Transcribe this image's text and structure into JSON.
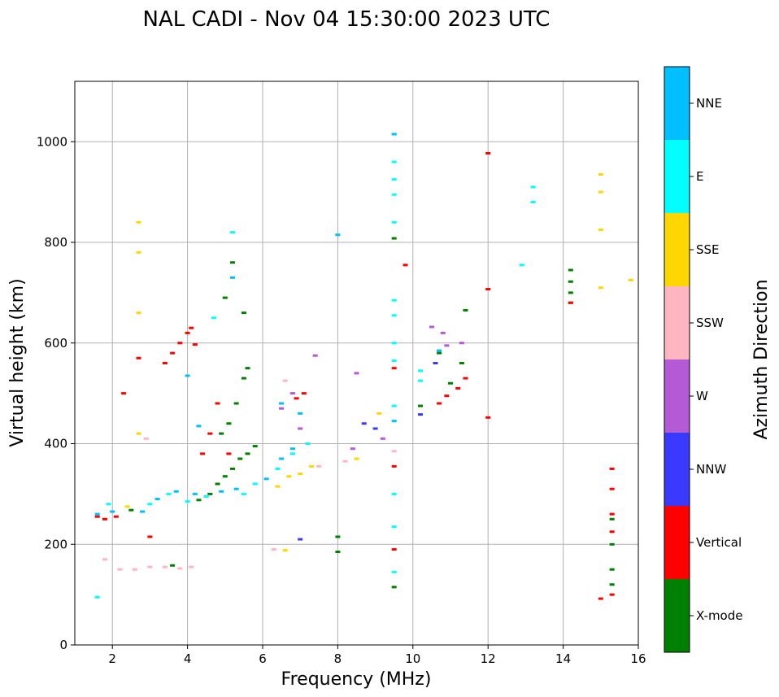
{
  "chart_data": {
    "type": "scatter",
    "title": "NAL CADI - Nov 04 15:30:00 2023 UTC",
    "xlabel": "Frequency (MHz)",
    "ylabel": "Virtual height (km)",
    "xlim": [
      1,
      16
    ],
    "ylim": [
      0,
      1120
    ],
    "x_ticks": [
      2,
      4,
      6,
      8,
      10,
      12,
      14,
      16
    ],
    "y_ticks": [
      0,
      200,
      400,
      600,
      800,
      1000
    ],
    "grid": true,
    "colorbar": {
      "label": "Azimuth Direction",
      "categories": [
        {
          "name": "X-mode",
          "color": "#008000"
        },
        {
          "name": "Vertical",
          "color": "#ff0000"
        },
        {
          "name": "NNW",
          "color": "#3a3aff"
        },
        {
          "name": "W",
          "color": "#b35ad4"
        },
        {
          "name": "SSW",
          "color": "#ffb6c1"
        },
        {
          "name": "SSE",
          "color": "#ffd700"
        },
        {
          "name": "E",
          "color": "#00ffff"
        },
        {
          "name": "NNE",
          "color": "#00bfff"
        }
      ]
    },
    "series": [
      {
        "name": "X-mode",
        "points": [
          [
            2.5,
            268
          ],
          [
            3.6,
            158
          ],
          [
            4.3,
            288
          ],
          [
            4.6,
            300
          ],
          [
            4.8,
            320
          ],
          [
            5.0,
            335
          ],
          [
            5.2,
            350
          ],
          [
            5.4,
            370
          ],
          [
            5.6,
            380
          ],
          [
            5.8,
            395
          ],
          [
            4.9,
            420
          ],
          [
            5.1,
            440
          ],
          [
            5.3,
            480
          ],
          [
            5.5,
            530
          ],
          [
            5.6,
            550
          ],
          [
            5.0,
            690
          ],
          [
            5.2,
            760
          ],
          [
            5.5,
            660
          ],
          [
            8.0,
            215
          ],
          [
            8.0,
            185
          ],
          [
            9.5,
            808
          ],
          [
            9.5,
            115
          ],
          [
            10.2,
            475
          ],
          [
            10.7,
            580
          ],
          [
            11.0,
            520
          ],
          [
            11.3,
            560
          ],
          [
            11.4,
            665
          ],
          [
            14.2,
            745
          ],
          [
            14.2,
            722
          ],
          [
            14.2,
            700
          ],
          [
            14.2,
            680
          ],
          [
            15.3,
            250
          ],
          [
            15.3,
            200
          ],
          [
            15.3,
            150
          ],
          [
            15.3,
            120
          ]
        ]
      },
      {
        "name": "Vertical",
        "points": [
          [
            1.6,
            255
          ],
          [
            1.8,
            250
          ],
          [
            2.1,
            255
          ],
          [
            2.3,
            500
          ],
          [
            2.7,
            570
          ],
          [
            3.0,
            215
          ],
          [
            3.4,
            560
          ],
          [
            3.6,
            580
          ],
          [
            3.8,
            600
          ],
          [
            4.0,
            620
          ],
          [
            4.1,
            630
          ],
          [
            4.2,
            597
          ],
          [
            4.4,
            380
          ],
          [
            4.6,
            420
          ],
          [
            4.8,
            480
          ],
          [
            5.1,
            380
          ],
          [
            6.9,
            490
          ],
          [
            7.1,
            500
          ],
          [
            9.5,
            550
          ],
          [
            9.5,
            355
          ],
          [
            9.5,
            190
          ],
          [
            9.8,
            755
          ],
          [
            10.7,
            480
          ],
          [
            10.9,
            495
          ],
          [
            11.2,
            510
          ],
          [
            11.4,
            530
          ],
          [
            12.0,
            977
          ],
          [
            12.0,
            707
          ],
          [
            12.0,
            452
          ],
          [
            14.2,
            680
          ],
          [
            15.0,
            92
          ],
          [
            15.3,
            350
          ],
          [
            15.3,
            310
          ],
          [
            15.3,
            260
          ],
          [
            15.3,
            225
          ],
          [
            15.3,
            100
          ]
        ]
      },
      {
        "name": "NNW",
        "points": [
          [
            7.0,
            210
          ],
          [
            8.7,
            440
          ],
          [
            9.0,
            430
          ],
          [
            10.2,
            458
          ],
          [
            10.6,
            560
          ]
        ]
      },
      {
        "name": "W",
        "points": [
          [
            6.5,
            470
          ],
          [
            6.8,
            500
          ],
          [
            7.0,
            430
          ],
          [
            7.4,
            575
          ],
          [
            8.4,
            390
          ],
          [
            8.5,
            540
          ],
          [
            9.2,
            410
          ],
          [
            10.5,
            632
          ],
          [
            10.8,
            620
          ],
          [
            10.9,
            595
          ],
          [
            11.3,
            600
          ]
        ]
      },
      {
        "name": "SSW",
        "points": [
          [
            1.8,
            170
          ],
          [
            2.2,
            150
          ],
          [
            2.6,
            150
          ],
          [
            3.0,
            155
          ],
          [
            3.4,
            155
          ],
          [
            3.8,
            152
          ],
          [
            4.1,
            155
          ],
          [
            2.9,
            410
          ],
          [
            6.3,
            190
          ],
          [
            6.6,
            525
          ],
          [
            7.5,
            355
          ],
          [
            8.2,
            365
          ],
          [
            9.5,
            385
          ]
        ]
      },
      {
        "name": "SSE",
        "points": [
          [
            2.4,
            275
          ],
          [
            2.7,
            840
          ],
          [
            2.7,
            780
          ],
          [
            2.7,
            660
          ],
          [
            2.7,
            420
          ],
          [
            6.4,
            315
          ],
          [
            6.7,
            335
          ],
          [
            7.0,
            340
          ],
          [
            7.3,
            355
          ],
          [
            6.6,
            188
          ],
          [
            8.5,
            370
          ],
          [
            9.1,
            460
          ],
          [
            15.0,
            935
          ],
          [
            15.0,
            900
          ],
          [
            15.0,
            825
          ],
          [
            15.0,
            710
          ],
          [
            15.8,
            725
          ]
        ]
      },
      {
        "name": "E",
        "points": [
          [
            1.6,
            95
          ],
          [
            1.9,
            280
          ],
          [
            3.0,
            280
          ],
          [
            3.5,
            300
          ],
          [
            4.0,
            285
          ],
          [
            4.5,
            295
          ],
          [
            5.5,
            300
          ],
          [
            5.8,
            320
          ],
          [
            6.4,
            350
          ],
          [
            6.8,
            380
          ],
          [
            7.2,
            400
          ],
          [
            5.2,
            820
          ],
          [
            4.7,
            650
          ],
          [
            9.5,
            1015
          ],
          [
            9.5,
            960
          ],
          [
            9.5,
            925
          ],
          [
            9.5,
            895
          ],
          [
            9.5,
            840
          ],
          [
            9.5,
            685
          ],
          [
            9.5,
            655
          ],
          [
            9.5,
            600
          ],
          [
            9.5,
            565
          ],
          [
            9.5,
            475
          ],
          [
            9.5,
            300
          ],
          [
            9.5,
            235
          ],
          [
            9.5,
            145
          ],
          [
            10.2,
            545
          ],
          [
            10.2,
            525
          ],
          [
            13.2,
            910
          ],
          [
            13.2,
            880
          ],
          [
            12.9,
            755
          ]
        ]
      },
      {
        "name": "NNE",
        "points": [
          [
            1.6,
            260
          ],
          [
            2.0,
            265
          ],
          [
            2.8,
            265
          ],
          [
            3.2,
            290
          ],
          [
            3.7,
            305
          ],
          [
            4.2,
            300
          ],
          [
            4.9,
            305
          ],
          [
            5.3,
            310
          ],
          [
            6.1,
            330
          ],
          [
            6.5,
            370
          ],
          [
            6.8,
            390
          ],
          [
            4.0,
            535
          ],
          [
            4.3,
            435
          ],
          [
            5.2,
            730
          ],
          [
            7.0,
            460
          ],
          [
            8.0,
            815
          ],
          [
            9.5,
            1015
          ],
          [
            9.5,
            445
          ],
          [
            10.7,
            585
          ],
          [
            6.5,
            480
          ]
        ]
      }
    ]
  }
}
